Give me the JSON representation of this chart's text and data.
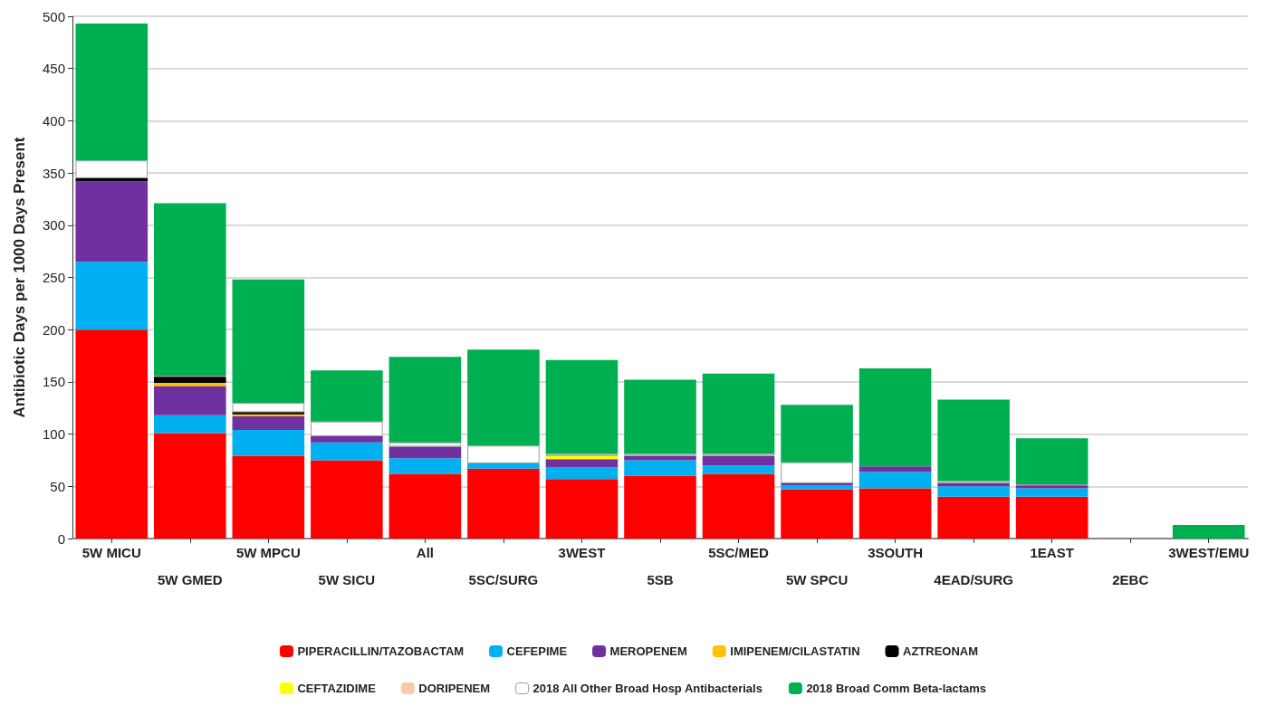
{
  "chart_data": {
    "type": "bar",
    "stacked": true,
    "ylabel": "Antibiotic Days per 1000 Days Present",
    "categories": [
      "5W MICU",
      "5W GMED",
      "5W MPCU",
      "5W SICU",
      "All",
      "5SC/SURG",
      "3WEST",
      "5SB",
      "5SC/MED",
      "5W SPCU",
      "3SOUTH",
      "4EAD/SURG",
      "1EAST",
      "2EBC",
      "3WEST/EMU"
    ],
    "series": [
      {
        "name": "PIPERACILLIN/TAZOBACTAM",
        "color": "#ff0000",
        "values": [
          200,
          101,
          79,
          75,
          62,
          67,
          57,
          60,
          62,
          47,
          48,
          40,
          40,
          0,
          0
        ]
      },
      {
        "name": "CEFEPIME",
        "color": "#00b0f0",
        "values": [
          65,
          17,
          25,
          17,
          15,
          5,
          11,
          15,
          8,
          4,
          16,
          10,
          8,
          0,
          0
        ]
      },
      {
        "name": "MEROPENEM",
        "color": "#7030a0",
        "values": [
          77,
          28,
          13,
          6,
          11,
          0,
          8,
          4,
          9,
          2,
          5,
          3,
          3,
          0,
          0
        ]
      },
      {
        "name": "IMIPENEM/CILASTATIN",
        "color": "#ffc000",
        "values": [
          0,
          3,
          2,
          0,
          0,
          0,
          0,
          0,
          0,
          0,
          0,
          0,
          0,
          0,
          0
        ]
      },
      {
        "name": "AZTREONAM",
        "color": "#000000",
        "values": [
          3,
          6,
          2,
          0,
          0,
          0,
          0,
          0,
          0,
          0,
          0,
          0,
          0,
          0,
          0
        ]
      },
      {
        "name": "CEFTAZIDIME",
        "color": "#ffff00",
        "values": [
          0,
          0,
          0,
          0,
          0,
          0,
          3,
          0,
          0,
          0,
          0,
          0,
          0,
          0,
          0
        ]
      },
      {
        "name": "DORIPENEM",
        "color": "#f8cbad",
        "values": [
          0,
          0,
          0,
          0,
          0,
          0,
          0,
          0,
          0,
          0,
          0,
          0,
          0,
          0,
          0
        ]
      },
      {
        "name": "2018 All Other Broad Hosp Antibacterials",
        "color": "#ffffff",
        "values": [
          17,
          1,
          9,
          14,
          4,
          17,
          2,
          2,
          2,
          20,
          0,
          2,
          1,
          0,
          0
        ]
      },
      {
        "name": "2018 Broad Comm Beta-lactams",
        "color": "#00b050",
        "values": [
          131,
          165,
          118,
          49,
          82,
          92,
          90,
          71,
          77,
          55,
          94,
          78,
          44,
          0,
          13
        ]
      }
    ],
    "ylim": [
      0,
      500
    ],
    "yticks": [
      0,
      50,
      100,
      150,
      200,
      250,
      300,
      350,
      400,
      450,
      500
    ],
    "grid": "y",
    "legend": "bottom"
  }
}
